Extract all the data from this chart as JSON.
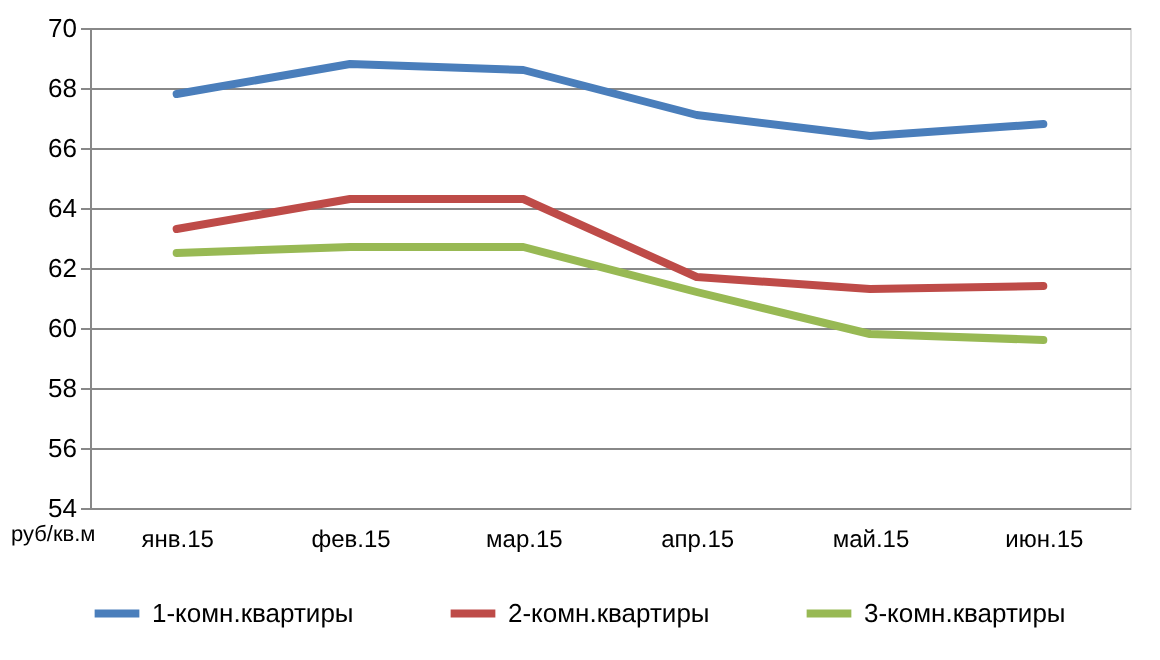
{
  "chart_data": {
    "type": "line",
    "ylabel": "руб/кв.м",
    "categories": [
      "янв.15",
      "фев.15",
      "мар.15",
      "апр.15",
      "май.15",
      "июн.15"
    ],
    "series": [
      {
        "name": "1-комн.квартиры",
        "color": "#4a7ebb",
        "values": [
          67.8,
          68.8,
          68.6,
          67.1,
          66.4,
          66.8
        ]
      },
      {
        "name": "2-комн.квартиры",
        "color": "#be4b48",
        "values": [
          63.3,
          64.3,
          64.3,
          61.7,
          61.3,
          61.4
        ]
      },
      {
        "name": "3-комн.квартиры",
        "color": "#98b954",
        "values": [
          62.5,
          62.7,
          62.7,
          61.2,
          59.8,
          59.6
        ]
      }
    ],
    "ylim": [
      54,
      70
    ],
    "yticks": [
      54,
      56,
      58,
      60,
      62,
      64,
      66,
      68,
      70
    ],
    "grid": "y",
    "legend": "bottom",
    "marker": "none",
    "line_style": "solid"
  }
}
